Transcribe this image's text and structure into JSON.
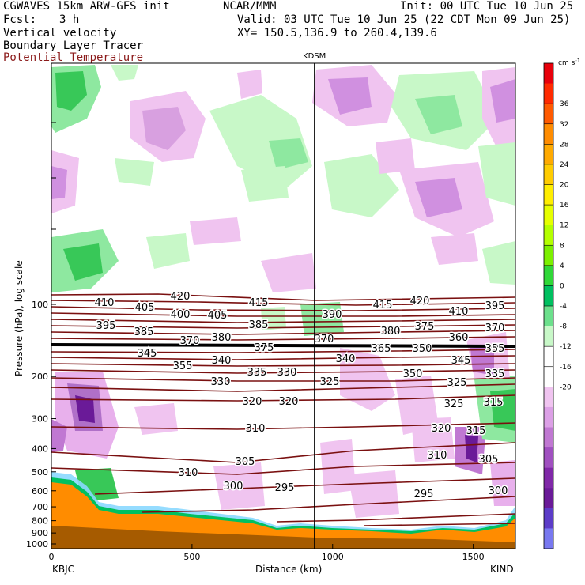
{
  "header": {
    "model": "CGWAVES 15km ARW-GFS init",
    "org": "NCAR/MMM",
    "init": "Init: 00 UTC Tue 10 Jun 25",
    "fcst_label": "Fcst:",
    "fcst_value": "3 h",
    "valid": "Valid: 03 UTC Tue 10 Jun 25 (22 CDT Mon 09 Jun 25)",
    "field1": "Vertical velocity",
    "xy": "XY= 150.5,136.9 to 260.4,139.6",
    "field2": "Boundary Layer Tracer",
    "field3": "Potential Temperature",
    "field3_color": "#8b1a1a"
  },
  "chart_data": {
    "type": "cross-section",
    "ylabel": "Pressure (hPa), log scale",
    "xlabel": "Distance (km)",
    "x_ticks": [
      "0",
      "500",
      "1000",
      "1500"
    ],
    "x_tick_values": [
      0,
      500,
      1000,
      1500
    ],
    "xlim": [
      0,
      1650
    ],
    "y_ticks": [
      "100",
      "200",
      "300",
      "400",
      "500",
      "600",
      "700",
      "800",
      "900",
      "1000"
    ],
    "y_tick_values": [
      100,
      200,
      300,
      400,
      500,
      600,
      700,
      800,
      900,
      1000
    ],
    "left_station": "KBJC",
    "right_station": "KIND",
    "marker_station": "KDSM",
    "marker_km": 935,
    "colorbar": {
      "unit": "cm s",
      "unit_exp": "-1",
      "levels": [
        "36",
        "32",
        "28",
        "24",
        "20",
        "16",
        "12",
        "8",
        "4",
        "0",
        "-4",
        "-8",
        "-12",
        "-16",
        "-20"
      ],
      "colors": [
        "#e8000b",
        "#ff2a00",
        "#ff5a00",
        "#ff8c00",
        "#ffaa00",
        "#ffcc00",
        "#ffee00",
        "#e6ff00",
        "#b4ff00",
        "#7cf000",
        "#30d838",
        "#00c060",
        "#6ce08c",
        "#c8f8c8",
        "#ffffff",
        "#ffffff",
        "#f0c4f0",
        "#dca0e6",
        "#c078d2",
        "#a050c0",
        "#8028a8",
        "#6a1a98",
        "#5c3cc8",
        "#7878f0"
      ]
    },
    "theta_labels": [
      "420",
      "415",
      "420",
      "415",
      "410",
      "405",
      "410",
      "395",
      "400",
      "405",
      "385",
      "390",
      "395",
      "380",
      "375",
      "370",
      "385",
      "370",
      "380",
      "375",
      "370",
      "360",
      "365",
      "350",
      "355",
      "345",
      "340",
      "345",
      "355",
      "340",
      "350",
      "335",
      "335",
      "330",
      "330",
      "325",
      "325",
      "320",
      "320",
      "325",
      "315",
      "310",
      "320",
      "315",
      "305",
      "310",
      "305",
      "310",
      "300",
      "295",
      "300",
      "295"
    ]
  }
}
